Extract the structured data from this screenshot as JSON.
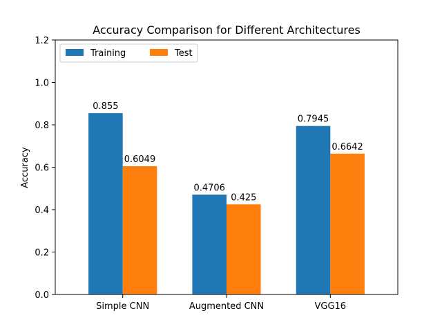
{
  "chart_data": {
    "type": "bar",
    "title": "Accuracy Comparison for Different Architectures",
    "xlabel": "",
    "ylabel": "Accuracy",
    "categories": [
      "Simple CNN",
      "Augmented CNN",
      "VGG16"
    ],
    "series": [
      {
        "name": "Training",
        "color": "#1f77b4",
        "values": [
          0.855,
          0.4706,
          0.7945
        ],
        "labels": [
          "0.855",
          "0.4706",
          "0.7945"
        ]
      },
      {
        "name": "Test",
        "color": "#ff7f0e",
        "values": [
          0.6049,
          0.425,
          0.6642
        ],
        "labels": [
          "0.6049",
          "0.425",
          "0.6642"
        ]
      }
    ],
    "ylim": [
      0,
      1.2
    ],
    "yticks": [
      0.0,
      0.2,
      0.4,
      0.6,
      0.8,
      1.0,
      1.2
    ],
    "ytick_labels": [
      "0.0",
      "0.2",
      "0.4",
      "0.6",
      "0.8",
      "1.0",
      "1.2"
    ],
    "grid": false,
    "legend_position": "top-left",
    "legend_columns": 2
  }
}
